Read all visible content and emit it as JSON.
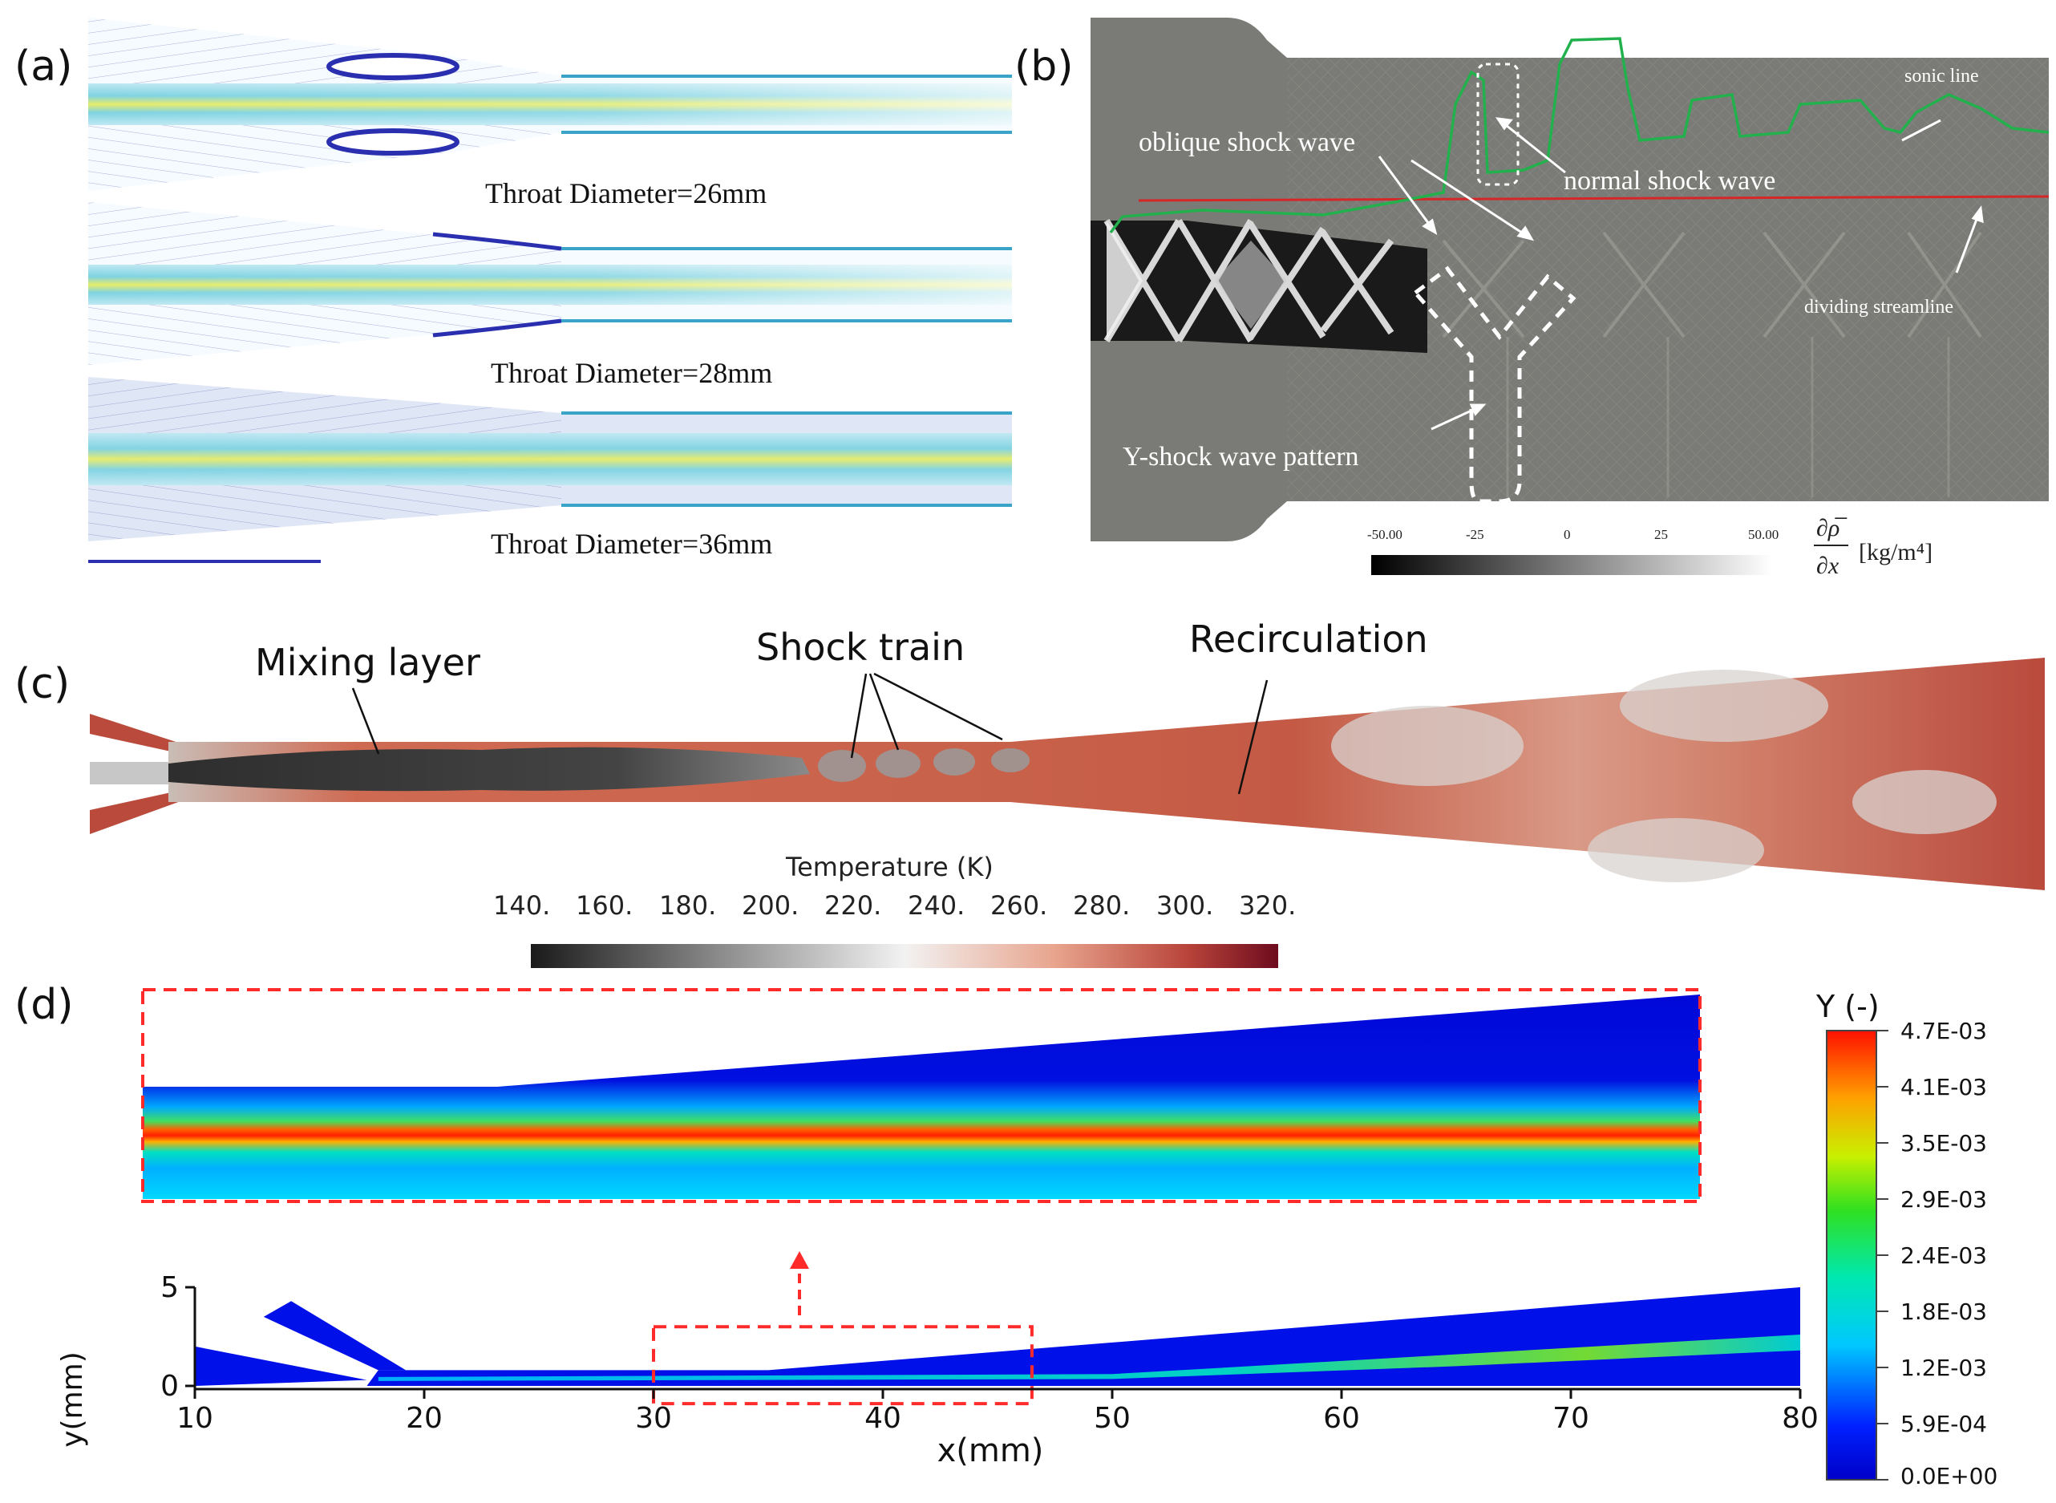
{
  "panels": {
    "a": {
      "label": "(a)",
      "captions": [
        "Throat  Diameter=26mm",
        "Throat Diameter=28mm",
        "Throat Diameter=36mm"
      ]
    },
    "b": {
      "label": "(b)",
      "annotations": {
        "oblique": "oblique shock wave",
        "normal": "normal shock wave",
        "sonic": "sonic line",
        "dividing": "dividing streamline",
        "yshock": "Y-shock wave pattern"
      },
      "colorbar": {
        "ticks": [
          "-50.00",
          "-25",
          "0",
          "25",
          "50.00"
        ],
        "unit": "[kg/m⁴]",
        "derivative_num": "∂ρ̅",
        "derivative_den": "∂x"
      },
      "colors": {
        "sonic": "#22b14c",
        "dividing": "#d62728",
        "field": "#7a7a76"
      }
    },
    "c": {
      "label": "(c)",
      "annotations": {
        "mixing": "Mixing layer",
        "shock": "Shock train",
        "recirc": "Recirculation"
      },
      "colorbar": {
        "title": "Temperature (K)",
        "ticks": [
          "140.",
          "160.",
          "180.",
          "200.",
          "220.",
          "240.",
          "260.",
          "280.",
          "300.",
          "320."
        ]
      },
      "colors": {
        "wall": "#b94a3c",
        "hot": "#c8614a",
        "cold": "#3a3a3a"
      }
    },
    "d": {
      "label": "(d)",
      "colorbar": {
        "title": "Y (-)",
        "ticks": [
          "4.7E-03",
          "4.1E-03",
          "3.5E-03",
          "2.9E-03",
          "2.4E-03",
          "1.8E-03",
          "1.2E-03",
          "5.9E-04",
          "0.0E+00"
        ]
      },
      "chart_data": {
        "type": "heatmap",
        "xlabel": "x(mm)",
        "ylabel": "y(mm)",
        "xlim": [
          10,
          80
        ],
        "ylim": [
          0,
          5
        ],
        "xticks": [
          10,
          20,
          30,
          40,
          50,
          60,
          70,
          80
        ],
        "yticks": [
          0,
          5
        ],
        "zoom_region_x": [
          30,
          46.5
        ]
      },
      "colors": {
        "highlight": "#ff2a2a"
      }
    }
  }
}
